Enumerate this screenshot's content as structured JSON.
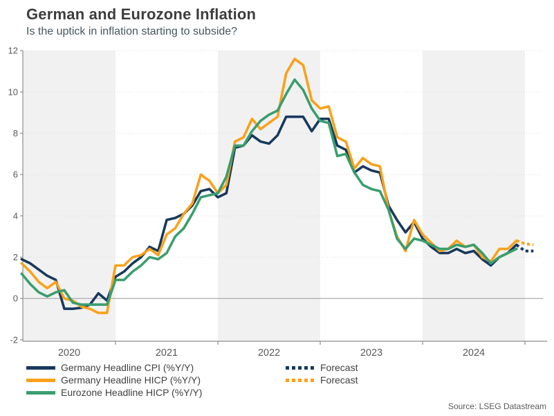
{
  "header": {
    "title": "German and Eurozone Inflation",
    "subtitle": "Is the uptick in inflation starting to subside?"
  },
  "legend": {
    "items": [
      {
        "label": "Germany Headline CPI (%Y/Y)",
        "color": "#17395d",
        "dashed": false
      },
      {
        "label": "Germany Headline HICP (%Y/Y)",
        "color": "#f9a11b",
        "dashed": false
      },
      {
        "label": "Eurozone Headline HICP (%Y/Y)",
        "color": "#3a9e6e",
        "dashed": false
      }
    ],
    "forecast_items": [
      {
        "label": "Forecast",
        "color": "#17395d",
        "dashed": true
      },
      {
        "label": "Forecast",
        "color": "#f9a11b",
        "dashed": true
      }
    ]
  },
  "source": {
    "text": "Source: LSEG Datastream"
  },
  "chart_data": {
    "type": "line",
    "title": "German and Eurozone Inflation",
    "subtitle": "Is the uptick in inflation starting to subside?",
    "x_unit": "month",
    "x_start": "2020-02",
    "x_end_solid": "2024-12",
    "start_month_offset": 1,
    "ylim": [
      -2,
      12.4
    ],
    "yticks": [
      -2,
      0,
      2,
      4,
      6,
      8,
      10,
      12
    ],
    "years": [
      "2020",
      "2021",
      "2022",
      "2023",
      "2024"
    ],
    "shaded_years": [
      2020,
      2022,
      2024
    ],
    "grid": "dotted-horizontal",
    "legend_position": "bottom",
    "series": [
      {
        "name": "Germany Headline CPI (%Y/Y)",
        "color": "#17395d",
        "values": [
          1.9,
          1.7,
          1.4,
          1.1,
          0.9,
          -0.5,
          -0.5,
          -0.45,
          -0.3,
          0.25,
          -0.1,
          1.05,
          1.3,
          1.7,
          2.0,
          2.5,
          2.3,
          3.8,
          3.9,
          4.1,
          4.5,
          5.2,
          5.3,
          4.9,
          5.1,
          7.3,
          7.4,
          7.9,
          7.6,
          7.5,
          7.9,
          8.8,
          8.8,
          8.8,
          8.1,
          8.7,
          8.7,
          7.4,
          7.2,
          6.1,
          6.4,
          6.2,
          6.1,
          4.5,
          3.8,
          3.2,
          3.7,
          2.9,
          2.5,
          2.2,
          2.2,
          2.4,
          2.2,
          2.3,
          1.9,
          1.6,
          2.0,
          2.2,
          2.6
        ]
      },
      {
        "name": "Germany Headline HICP (%Y/Y)",
        "color": "#f9a11b",
        "values": [
          1.7,
          1.3,
          0.8,
          0.5,
          0.8,
          0.0,
          -0.1,
          -0.4,
          -0.5,
          -0.7,
          -0.7,
          1.6,
          1.6,
          2.0,
          2.1,
          2.4,
          2.1,
          3.1,
          3.4,
          4.1,
          4.6,
          6.0,
          5.7,
          5.1,
          5.5,
          7.6,
          7.8,
          8.7,
          8.2,
          8.5,
          8.8,
          10.9,
          11.6,
          11.3,
          9.6,
          9.2,
          9.3,
          7.8,
          7.6,
          6.3,
          6.8,
          6.5,
          6.4,
          4.3,
          3.0,
          2.3,
          3.8,
          3.1,
          2.7,
          2.3,
          2.4,
          2.8,
          2.5,
          2.6,
          2.0,
          1.8,
          2.4,
          2.4,
          2.8
        ]
      },
      {
        "name": "Eurozone Headline HICP (%Y/Y)",
        "color": "#3a9e6e",
        "values": [
          1.2,
          0.7,
          0.3,
          0.1,
          0.3,
          0.4,
          -0.2,
          -0.3,
          -0.3,
          -0.3,
          -0.3,
          0.9,
          0.9,
          1.3,
          1.6,
          2.0,
          1.9,
          2.2,
          3.0,
          3.4,
          4.1,
          4.9,
          5.0,
          5.1,
          5.9,
          7.4,
          7.4,
          8.1,
          8.6,
          8.9,
          9.1,
          9.9,
          10.6,
          10.1,
          9.2,
          8.6,
          8.5,
          6.9,
          7.0,
          6.1,
          5.5,
          5.3,
          5.2,
          4.3,
          2.9,
          2.4,
          2.9,
          2.8,
          2.6,
          2.4,
          2.4,
          2.6,
          2.5,
          2.6,
          2.2,
          1.7,
          2.0,
          2.2,
          2.4
        ]
      }
    ],
    "forecasts": [
      {
        "name": "Forecast",
        "color": "#17395d",
        "start": "2024-12",
        "start_month_offset": 59,
        "values": [
          2.6,
          2.3,
          2.3
        ]
      },
      {
        "name": "Forecast",
        "color": "#f9a11b",
        "start": "2024-12",
        "start_month_offset": 59,
        "values": [
          2.8,
          2.65,
          2.6
        ]
      }
    ],
    "style": {
      "band_color": "#f1f1f1",
      "grid_color": "#d9d9d9",
      "zero_line_color": "#a3a3a3",
      "axis_color": "#8c8c8c",
      "tick_label_color": "#595959"
    },
    "source": "Source: LSEG Datastream"
  }
}
